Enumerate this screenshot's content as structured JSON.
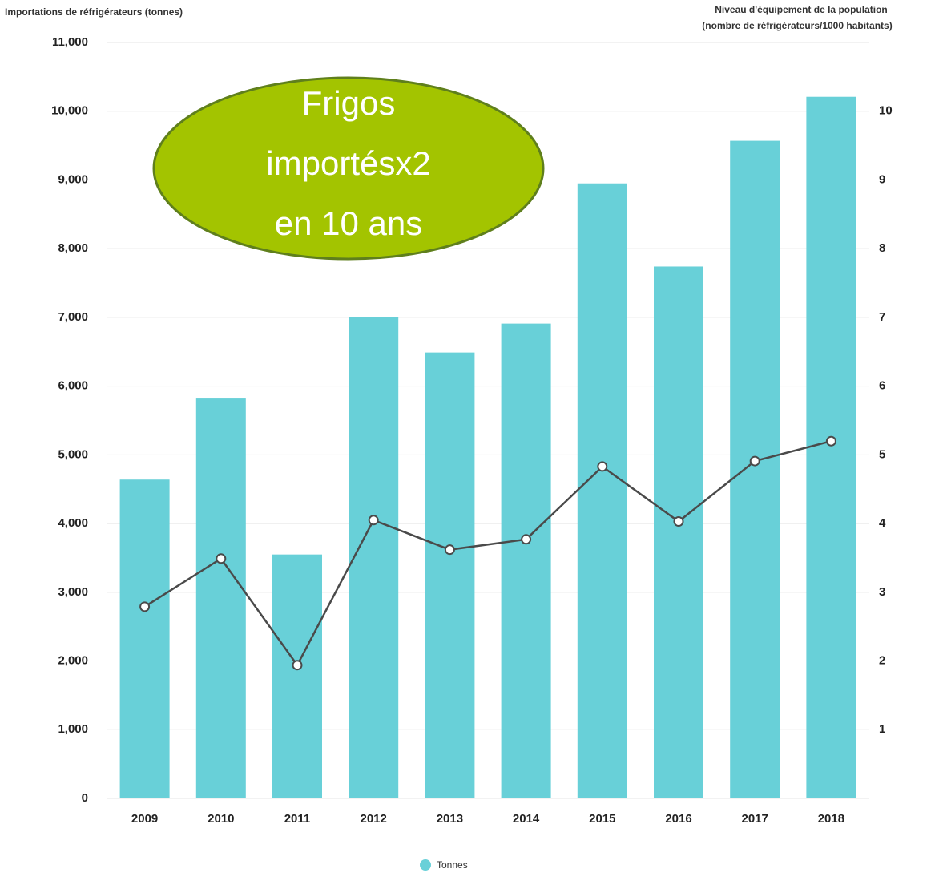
{
  "chart_data": {
    "type": "bar",
    "y_label": "Importations de réfrigérateurs (tonnes)",
    "y2_label": [
      "Niveau d'équipement de la population",
      "(nombre de réfrigérateurs/1000 habitants)"
    ],
    "annotation": [
      "Frigos",
      "importésx2",
      "en 10 ans"
    ],
    "categories": [
      "2009",
      "2010",
      "2011",
      "2012",
      "2013",
      "2014",
      "2015",
      "2016",
      "2017",
      "2018"
    ],
    "series": [
      {
        "name": "Tonnes",
        "type": "bar",
        "color": "#68d0d8",
        "values": [
          4640,
          5820,
          3550,
          7010,
          6490,
          6910,
          8950,
          7740,
          9570,
          10210
        ]
      },
      {
        "type": "line",
        "axis": "y2",
        "color": "#4a4a4a",
        "values": [
          2.79,
          3.49,
          1.94,
          4.05,
          3.62,
          3.77,
          4.83,
          4.03,
          4.91,
          5.2
        ]
      }
    ],
    "ylim": [
      0,
      11000
    ],
    "yticks": [
      0,
      {
        "value": 1000,
        "label": "1,000"
      },
      {
        "value": 2000,
        "label": "2,000"
      },
      {
        "value": 3000,
        "label": "3,000"
      },
      {
        "value": 4000,
        "label": "4,000"
      },
      {
        "value": 5000,
        "label": "5,000"
      },
      {
        "value": 6000,
        "label": "6,000"
      },
      {
        "value": 7000,
        "label": "7,000"
      },
      {
        "value": 8000,
        "label": "8,000"
      },
      {
        "value": 9000,
        "label": "9,000"
      },
      {
        "value": 10000,
        "label": "10,000"
      },
      {
        "value": 11000,
        "label": "11,000"
      }
    ],
    "y2lim": [
      0,
      11
    ],
    "y2ticks": [
      1,
      2,
      3,
      4,
      5,
      6,
      7,
      8,
      9,
      10
    ],
    "grid": true,
    "legend": "bottom"
  }
}
